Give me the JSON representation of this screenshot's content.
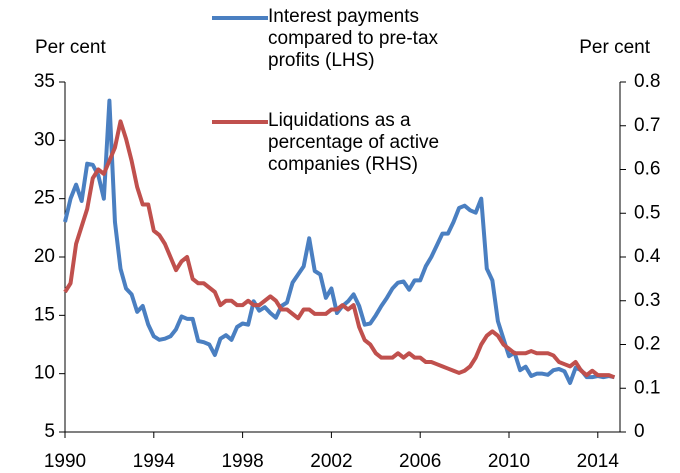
{
  "chart_data": {
    "type": "line",
    "y_label": "Per cent",
    "y2_label": "Per cent",
    "x": [
      1990,
      1990.25,
      1990.5,
      1990.75,
      1991,
      1991.25,
      1991.5,
      1991.75,
      1992,
      1992.25,
      1992.5,
      1992.75,
      1993,
      1993.25,
      1993.5,
      1993.75,
      1994,
      1994.25,
      1994.5,
      1994.75,
      1995,
      1995.25,
      1995.5,
      1995.75,
      1996,
      1996.25,
      1996.5,
      1996.75,
      1997,
      1997.25,
      1997.5,
      1997.75,
      1998,
      1998.25,
      1998.5,
      1998.75,
      1999,
      1999.25,
      1999.5,
      1999.75,
      2000,
      2000.25,
      2000.5,
      2000.75,
      2001,
      2001.25,
      2001.5,
      2001.75,
      2002,
      2002.25,
      2002.5,
      2002.75,
      2003,
      2003.25,
      2003.5,
      2003.75,
      2004,
      2004.25,
      2004.5,
      2004.75,
      2005,
      2005.25,
      2005.5,
      2005.75,
      2006,
      2006.25,
      2006.5,
      2006.75,
      2007,
      2007.25,
      2007.5,
      2007.75,
      2008,
      2008.25,
      2008.5,
      2008.75,
      2009,
      2009.25,
      2009.5,
      2009.75,
      2010,
      2010.25,
      2010.5,
      2010.75,
      2011,
      2011.25,
      2011.5,
      2011.75,
      2012,
      2012.25,
      2012.5,
      2012.75,
      2013,
      2013.25,
      2013.5,
      2013.75,
      2014,
      2014.25,
      2014.5,
      2014.75
    ],
    "series": [
      {
        "name": "Interest payments compared to pre-tax profits (LHS)",
        "color": "#4a7fc1",
        "axis": "y",
        "values": [
          23,
          25,
          26.2,
          24.8,
          28,
          27.9,
          27,
          25,
          33.4,
          23,
          19,
          17.3,
          16.8,
          15.3,
          15.8,
          14.2,
          13.2,
          12.9,
          13,
          13.2,
          13.8,
          14.9,
          14.7,
          14.7,
          12.8,
          12.7,
          12.5,
          11.6,
          13,
          13.3,
          12.9,
          14,
          14.3,
          14.2,
          16.2,
          15.4,
          15.7,
          15.2,
          14.8,
          15.8,
          16.1,
          17.8,
          18.5,
          19.2,
          21.6,
          18.8,
          18.5,
          16.5,
          17.3,
          15.2,
          15.8,
          16.2,
          16.8,
          15.8,
          14.2,
          14.3,
          15,
          15.8,
          16.5,
          17.3,
          17.8,
          17.9,
          17.2,
          18,
          18,
          19.2,
          20,
          21,
          22,
          22,
          23,
          24.2,
          24.4,
          24,
          23.8,
          25,
          19,
          18,
          14.5,
          13,
          11.5,
          11.8,
          10.3,
          10.6,
          9.8,
          10,
          10,
          9.9,
          10.3,
          10.4,
          10.2,
          9.2,
          10.5,
          10.3,
          9.7,
          9.7,
          9.8,
          9.7,
          9.8,
          9.7
        ]
      },
      {
        "name": "Liquidations as a percentage of active companies (RHS)",
        "color": "#c0504d",
        "axis": "y2",
        "values": [
          0.32,
          0.34,
          0.43,
          0.47,
          0.51,
          0.58,
          0.6,
          0.59,
          0.62,
          0.65,
          0.71,
          0.67,
          0.62,
          0.56,
          0.52,
          0.52,
          0.46,
          0.45,
          0.43,
          0.4,
          0.37,
          0.39,
          0.4,
          0.35,
          0.34,
          0.34,
          0.33,
          0.32,
          0.29,
          0.3,
          0.3,
          0.29,
          0.29,
          0.3,
          0.29,
          0.29,
          0.3,
          0.31,
          0.3,
          0.28,
          0.28,
          0.27,
          0.26,
          0.28,
          0.28,
          0.27,
          0.27,
          0.27,
          0.28,
          0.28,
          0.29,
          0.28,
          0.29,
          0.24,
          0.21,
          0.2,
          0.18,
          0.17,
          0.17,
          0.17,
          0.18,
          0.17,
          0.18,
          0.17,
          0.17,
          0.16,
          0.16,
          0.155,
          0.15,
          0.145,
          0.14,
          0.135,
          0.14,
          0.15,
          0.17,
          0.2,
          0.22,
          0.23,
          0.22,
          0.2,
          0.19,
          0.18,
          0.18,
          0.18,
          0.185,
          0.18,
          0.18,
          0.18,
          0.175,
          0.16,
          0.155,
          0.15,
          0.16,
          0.14,
          0.13,
          0.14,
          0.13,
          0.13,
          0.13,
          0.125
        ]
      }
    ],
    "xlim": [
      1990,
      2015
    ],
    "xticks": [
      1990,
      1994,
      1998,
      2002,
      2006,
      2010,
      2014
    ],
    "ylim": [
      5,
      35
    ],
    "yticks": [
      5,
      10,
      15,
      20,
      25,
      30,
      35
    ],
    "y2lim": [
      0,
      0.8
    ],
    "y2ticks": [
      0,
      0.1,
      0.2,
      0.3,
      0.4,
      0.5,
      0.6,
      0.7,
      0.8
    ],
    "grid": false,
    "legend": "top"
  }
}
